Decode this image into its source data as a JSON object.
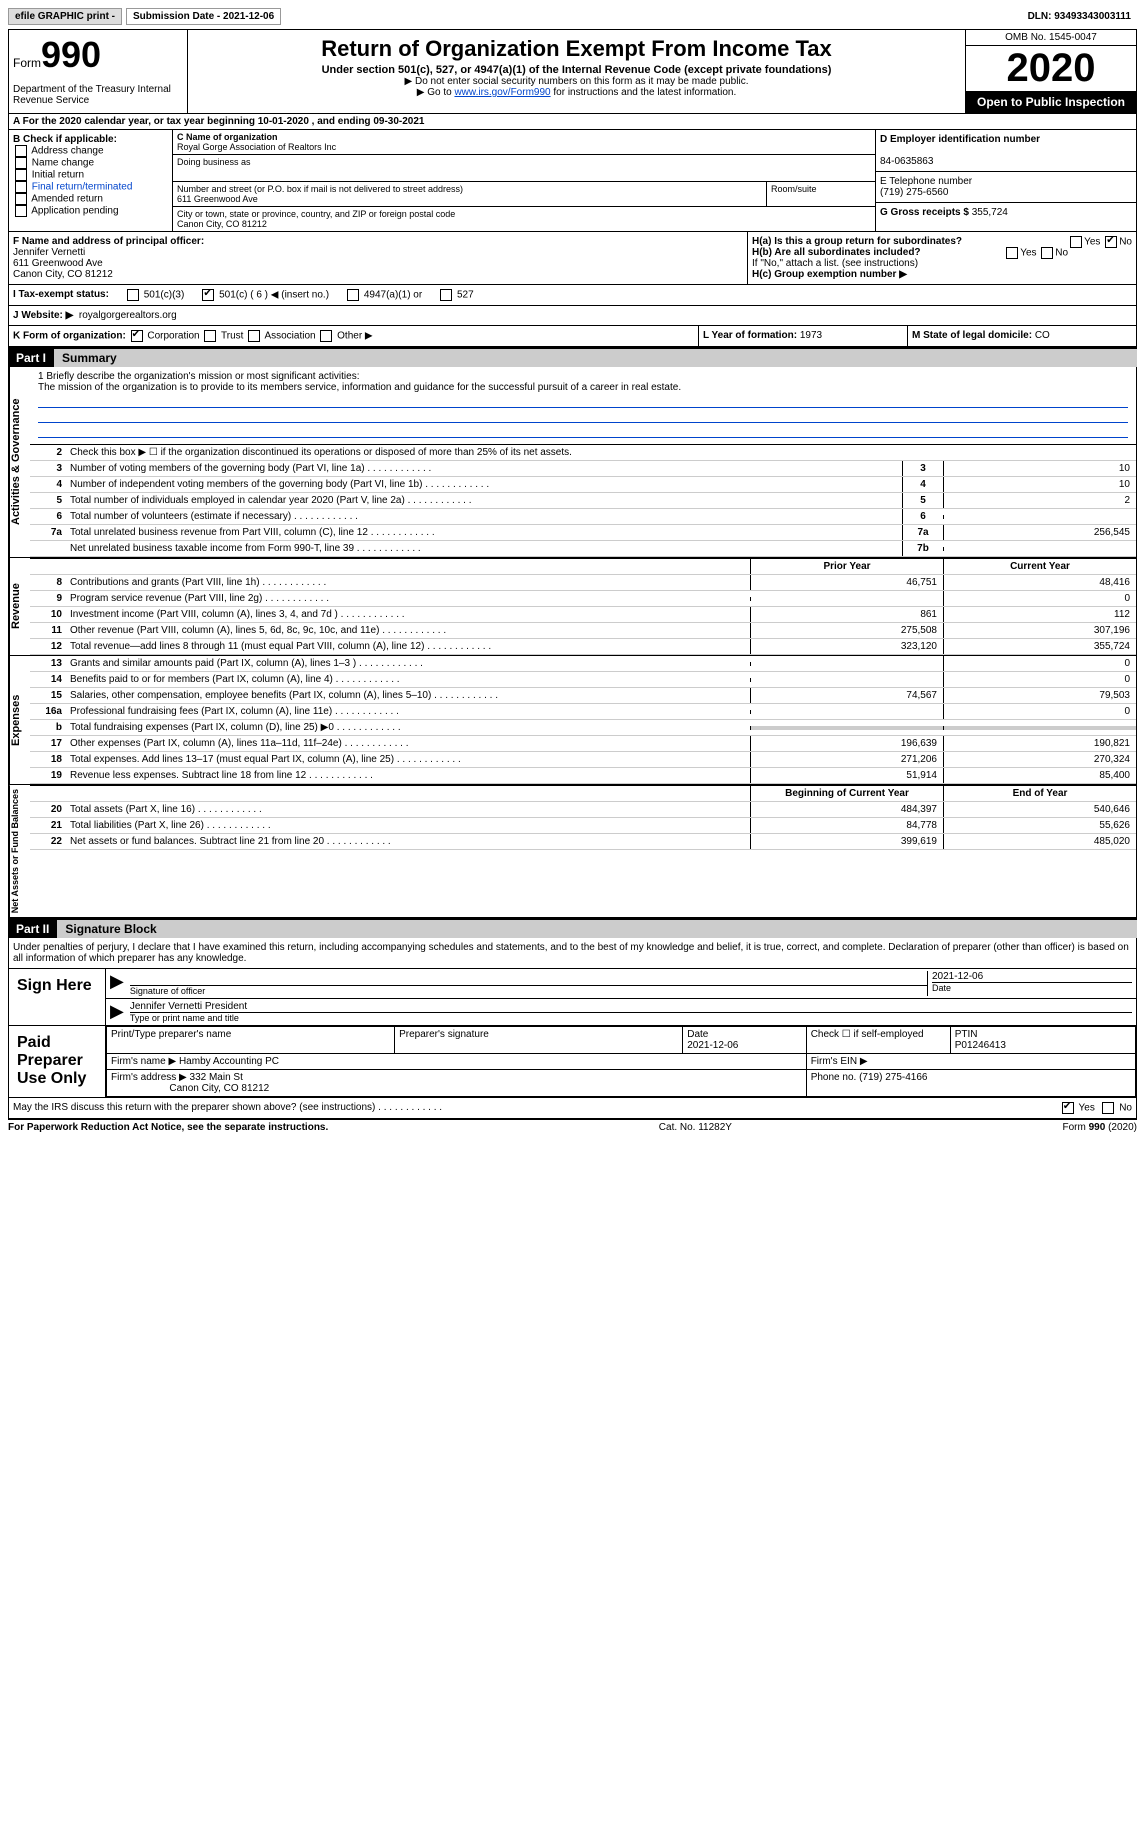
{
  "header_bar": {
    "efile_label": "efile GRAPHIC print -",
    "submission_label": "Submission Date - 2021-12-06",
    "dln": "DLN: 93493343003111"
  },
  "form_id": {
    "form_word": "Form",
    "form_num": "990",
    "dept": "Department of the Treasury\nInternal Revenue Service"
  },
  "title_block": {
    "title": "Return of Organization Exempt From Income Tax",
    "sub": "Under section 501(c), 527, or 4947(a)(1) of the Internal Revenue Code (except private foundations)",
    "instr1": "▶ Do not enter social security numbers on this form as it may be made public.",
    "instr2_pre": "▶ Go to ",
    "instr2_link": "www.irs.gov/Form990",
    "instr2_post": " for instructions and the latest information."
  },
  "year_block": {
    "omb": "OMB No. 1545-0047",
    "year": "2020",
    "open": "Open to Public Inspection"
  },
  "row_a": "A For the 2020 calendar year, or tax year beginning 10-01-2020    , and ending 09-30-2021",
  "col_b": {
    "label": "B Check if applicable:",
    "items": [
      "Address change",
      "Name change",
      "Initial return",
      "Final return/terminated",
      "Amended return",
      "Application pending"
    ]
  },
  "col_c": {
    "name_label": "C Name of organization",
    "name_val": "Royal Gorge Association of Realtors Inc",
    "dba_label": "Doing business as",
    "addr_label": "Number and street (or P.O. box if mail is not delivered to street address)",
    "addr_val": "611 Greenwood Ave",
    "room_label": "Room/suite",
    "city_label": "City or town, state or province, country, and ZIP or foreign postal code",
    "city_val": "Canon City, CO  81212"
  },
  "col_de": {
    "d_label": "D Employer identification number",
    "d_val": "84-0635863",
    "e_label": "E Telephone number",
    "e_val": "(719) 275-6560",
    "g_label": "G Gross receipts $",
    "g_val": "355,724"
  },
  "row_f": {
    "label": "F Name and address of principal officer:",
    "name": "Jennifer Vernetti",
    "addr1": "611 Greenwood Ave",
    "addr2": "Canon City, CO  81212"
  },
  "row_h": {
    "ha": "H(a)  Is this a group return for subordinates?",
    "ha_yes": "Yes",
    "ha_no": "No",
    "hb": "H(b)  Are all subordinates included?",
    "hb_yes": "Yes",
    "hb_no": "No",
    "hb_note": "If \"No,\" attach a list. (see instructions)",
    "hc": "H(c)  Group exemption number ▶"
  },
  "row_i": {
    "label": "I   Tax-exempt status:",
    "opt1": "501(c)(3)",
    "opt2": "501(c) ( 6 ) ◀ (insert no.)",
    "opt3": "4947(a)(1) or",
    "opt4": "527"
  },
  "row_j": {
    "label": "J   Website: ▶",
    "val": "royalgorgerealtors.org"
  },
  "row_k": {
    "label": "K Form of organization:",
    "opts": [
      "Corporation",
      "Trust",
      "Association",
      "Other ▶"
    ],
    "checked": 0
  },
  "row_l": {
    "label": "L Year of formation:",
    "val": "1973"
  },
  "row_m": {
    "label": "M State of legal domicile:",
    "val": "CO"
  },
  "part1": {
    "header": "Part I",
    "title": "Summary"
  },
  "mission": {
    "q1_label": "1   Briefly describe the organization's mission or most significant activities:",
    "q1_val": "The mission of the organization is to provide to its members service, information and guidance for the successful pursuit of a career in real estate."
  },
  "governance": {
    "side": "Activities & Governance",
    "q2": "Check this box ▶ ☐ if the organization discontinued its operations or disposed of more than 25% of its net assets.",
    "lines": [
      {
        "n": "3",
        "desc": "Number of voting members of the governing body (Part VI, line 1a)",
        "box": "3",
        "val": "10"
      },
      {
        "n": "4",
        "desc": "Number of independent voting members of the governing body (Part VI, line 1b)",
        "box": "4",
        "val": "10"
      },
      {
        "n": "5",
        "desc": "Total number of individuals employed in calendar year 2020 (Part V, line 2a)",
        "box": "5",
        "val": "2"
      },
      {
        "n": "6",
        "desc": "Total number of volunteers (estimate if necessary)",
        "box": "6",
        "val": ""
      },
      {
        "n": "7a",
        "desc": "Total unrelated business revenue from Part VIII, column (C), line 12",
        "box": "7a",
        "val": "256,545"
      },
      {
        "n": "",
        "desc": "Net unrelated business taxable income from Form 990-T, line 39",
        "box": "7b",
        "val": ""
      }
    ]
  },
  "revenue": {
    "side": "Revenue",
    "header_prior": "Prior Year",
    "header_curr": "Current Year",
    "lines": [
      {
        "n": "8",
        "desc": "Contributions and grants (Part VIII, line 1h)",
        "v1": "46,751",
        "v2": "48,416"
      },
      {
        "n": "9",
        "desc": "Program service revenue (Part VIII, line 2g)",
        "v1": "",
        "v2": "0"
      },
      {
        "n": "10",
        "desc": "Investment income (Part VIII, column (A), lines 3, 4, and 7d )",
        "v1": "861",
        "v2": "112"
      },
      {
        "n": "11",
        "desc": "Other revenue (Part VIII, column (A), lines 5, 6d, 8c, 9c, 10c, and 11e)",
        "v1": "275,508",
        "v2": "307,196"
      },
      {
        "n": "12",
        "desc": "Total revenue—add lines 8 through 11 (must equal Part VIII, column (A), line 12)",
        "v1": "323,120",
        "v2": "355,724"
      }
    ]
  },
  "expenses": {
    "side": "Expenses",
    "lines": [
      {
        "n": "13",
        "desc": "Grants and similar amounts paid (Part IX, column (A), lines 1–3 )",
        "v1": "",
        "v2": "0"
      },
      {
        "n": "14",
        "desc": "Benefits paid to or for members (Part IX, column (A), line 4)",
        "v1": "",
        "v2": "0"
      },
      {
        "n": "15",
        "desc": "Salaries, other compensation, employee benefits (Part IX, column (A), lines 5–10)",
        "v1": "74,567",
        "v2": "79,503"
      },
      {
        "n": "16a",
        "desc": "Professional fundraising fees (Part IX, column (A), line 11e)",
        "v1": "",
        "v2": "0"
      },
      {
        "n": "b",
        "desc": "Total fundraising expenses (Part IX, column (D), line 25) ▶0",
        "v1": "GREY",
        "v2": "GREY"
      },
      {
        "n": "17",
        "desc": "Other expenses (Part IX, column (A), lines 11a–11d, 11f–24e)",
        "v1": "196,639",
        "v2": "190,821"
      },
      {
        "n": "18",
        "desc": "Total expenses. Add lines 13–17 (must equal Part IX, column (A), line 25)",
        "v1": "271,206",
        "v2": "270,324"
      },
      {
        "n": "19",
        "desc": "Revenue less expenses. Subtract line 18 from line 12",
        "v1": "51,914",
        "v2": "85,400"
      }
    ]
  },
  "netassets": {
    "side": "Net Assets or Fund Balances",
    "header_beg": "Beginning of Current Year",
    "header_end": "End of Year",
    "lines": [
      {
        "n": "20",
        "desc": "Total assets (Part X, line 16)",
        "v1": "484,397",
        "v2": "540,646"
      },
      {
        "n": "21",
        "desc": "Total liabilities (Part X, line 26)",
        "v1": "84,778",
        "v2": "55,626"
      },
      {
        "n": "22",
        "desc": "Net assets or fund balances. Subtract line 21 from line 20",
        "v1": "399,619",
        "v2": "485,020"
      }
    ]
  },
  "part2": {
    "header": "Part II",
    "title": "Signature Block"
  },
  "sig": {
    "penalties": "Under penalties of perjury, I declare that I have examined this return, including accompanying schedules and statements, and to the best of my knowledge and belief, it is true, correct, and complete. Declaration of preparer (other than officer) is based on all information of which preparer has any knowledge.",
    "sign_here": "Sign Here",
    "sig_officer": "Signature of officer",
    "date": "Date",
    "date_val": "2021-12-06",
    "name_title": "Jennifer Vernetti  President",
    "type_name": "Type or print name and title"
  },
  "preparer": {
    "label": "Paid Preparer Use Only",
    "print_name": "Print/Type preparer's name",
    "prep_sig": "Preparer's signature",
    "date": "Date",
    "date_val": "2021-12-06",
    "check_self": "Check ☐ if self-employed",
    "ptin": "PTIN",
    "ptin_val": "P01246413",
    "firm_name_label": "Firm's name    ▶",
    "firm_name_val": "Hamby Accounting PC",
    "firm_ein_label": "Firm's EIN ▶",
    "firm_addr_label": "Firm's address ▶",
    "firm_addr_val1": "332 Main St",
    "firm_addr_val2": "Canon City, CO  81212",
    "phone_label": "Phone no.",
    "phone_val": "(719) 275-4166"
  },
  "discuss": {
    "q": "May the IRS discuss this return with the preparer shown above? (see instructions)",
    "yes": "Yes",
    "no": "No"
  },
  "footer": {
    "left": "For Paperwork Reduction Act Notice, see the separate instructions.",
    "mid": "Cat. No. 11282Y",
    "right": "Form 990 (2020)"
  }
}
